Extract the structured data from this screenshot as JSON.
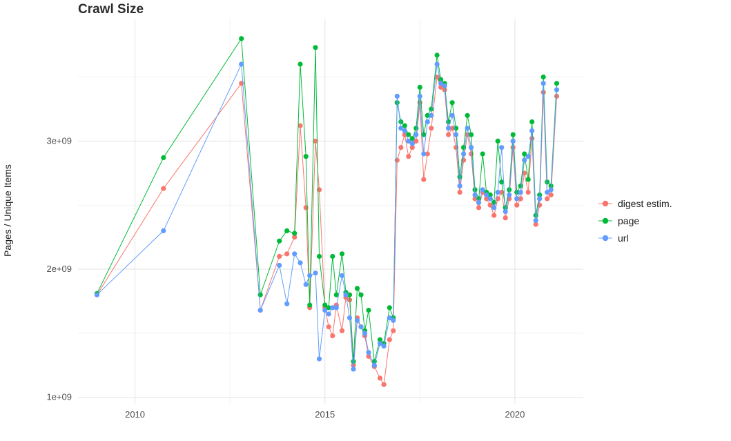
{
  "title": "Crawl Size",
  "chart_data": {
    "type": "line",
    "title": "Crawl Size",
    "xlabel": "",
    "ylabel": "Pages / Unique Items",
    "values_scale": "1e9",
    "xlim": [
      2008.5,
      2021.8
    ],
    "ylim": [
      0.95,
      3.95
    ],
    "x_ticks": [
      2010,
      2015,
      2020
    ],
    "x_tick_labels": [
      "2010",
      "2015",
      "2020"
    ],
    "y_ticks": [
      1,
      2,
      3
    ],
    "y_tick_labels": [
      "1e+09",
      "2e+09",
      "3e+09"
    ],
    "grid": true,
    "minor_gridlines": true,
    "legend_position": "right",
    "x": [
      2009.0,
      2010.75,
      2012.8,
      2013.3,
      2013.8,
      2014.0,
      2014.2,
      2014.35,
      2014.5,
      2014.6,
      2014.75,
      2014.85,
      2015.0,
      2015.1,
      2015.2,
      2015.3,
      2015.45,
      2015.55,
      2015.65,
      2015.75,
      2015.85,
      2015.95,
      2016.05,
      2016.15,
      2016.3,
      2016.45,
      2016.55,
      2016.7,
      2016.8,
      2016.9,
      2017.0,
      2017.1,
      2017.2,
      2017.3,
      2017.4,
      2017.5,
      2017.6,
      2017.7,
      2017.8,
      2017.95,
      2018.05,
      2018.15,
      2018.25,
      2018.35,
      2018.45,
      2018.55,
      2018.65,
      2018.75,
      2018.85,
      2018.95,
      2019.05,
      2019.15,
      2019.25,
      2019.35,
      2019.45,
      2019.55,
      2019.65,
      2019.75,
      2019.85,
      2019.95,
      2020.05,
      2020.15,
      2020.25,
      2020.35,
      2020.45,
      2020.55,
      2020.65,
      2020.75,
      2020.85,
      2020.95,
      2021.1
    ],
    "series": [
      {
        "name": "digest estim.",
        "color": "#F8766D",
        "values": [
          1.8,
          2.63,
          3.45,
          1.68,
          2.1,
          2.12,
          2.25,
          3.12,
          2.48,
          1.7,
          3.0,
          2.62,
          1.7,
          1.55,
          1.48,
          1.72,
          1.52,
          1.78,
          1.76,
          1.25,
          1.62,
          1.55,
          1.48,
          1.32,
          1.24,
          1.15,
          1.1,
          1.45,
          1.52,
          2.85,
          2.95,
          3.05,
          2.88,
          2.95,
          3.0,
          3.3,
          2.7,
          2.9,
          3.1,
          3.5,
          3.42,
          3.4,
          3.05,
          3.1,
          2.95,
          2.6,
          2.85,
          3.05,
          2.9,
          2.55,
          2.48,
          2.6,
          2.55,
          2.5,
          2.42,
          2.55,
          2.6,
          2.4,
          2.55,
          2.95,
          2.5,
          2.55,
          2.75,
          2.6,
          3.02,
          2.35,
          2.5,
          3.38,
          2.55,
          2.58,
          3.35
        ]
      },
      {
        "name": "page",
        "color": "#00BA38",
        "values": [
          1.81,
          2.87,
          3.8,
          1.8,
          2.22,
          2.3,
          2.28,
          3.6,
          2.88,
          1.72,
          3.73,
          2.1,
          1.72,
          1.7,
          2.1,
          1.8,
          2.12,
          1.82,
          1.8,
          1.28,
          1.85,
          1.8,
          1.52,
          1.68,
          1.28,
          1.45,
          1.42,
          1.7,
          1.62,
          3.3,
          3.15,
          3.12,
          3.05,
          3.02,
          3.1,
          3.42,
          3.05,
          3.2,
          3.25,
          3.67,
          3.48,
          3.45,
          3.15,
          3.3,
          3.1,
          2.72,
          2.95,
          3.2,
          3.05,
          2.62,
          2.55,
          2.9,
          2.6,
          2.58,
          2.52,
          3.0,
          2.68,
          2.48,
          2.62,
          3.05,
          2.6,
          2.65,
          2.9,
          2.7,
          3.15,
          2.42,
          2.58,
          3.5,
          2.68,
          2.65,
          3.45
        ]
      },
      {
        "name": "url",
        "color": "#619CFF",
        "values": [
          1.8,
          2.3,
          3.6,
          1.68,
          2.03,
          1.73,
          2.12,
          2.05,
          1.88,
          1.95,
          1.97,
          1.3,
          1.68,
          1.65,
          1.7,
          1.7,
          1.95,
          1.8,
          1.62,
          1.22,
          1.6,
          1.55,
          1.5,
          1.35,
          1.25,
          1.42,
          1.4,
          1.62,
          1.6,
          3.35,
          3.1,
          3.08,
          3.0,
          2.98,
          3.05,
          3.35,
          2.9,
          3.15,
          3.2,
          3.6,
          3.45,
          3.43,
          3.1,
          3.2,
          3.05,
          2.65,
          2.9,
          3.1,
          2.95,
          2.58,
          2.52,
          2.62,
          2.58,
          2.55,
          2.48,
          2.6,
          2.95,
          2.45,
          2.58,
          3.0,
          2.55,
          2.6,
          2.85,
          2.88,
          3.08,
          2.38,
          2.55,
          3.45,
          2.6,
          2.62,
          3.4
        ]
      }
    ]
  },
  "legend": {
    "items": [
      {
        "label": "digest estim.",
        "color": "#F8766D"
      },
      {
        "label": "page",
        "color": "#00BA38"
      },
      {
        "label": "url",
        "color": "#619CFF"
      }
    ]
  },
  "colors": {
    "grid_major": "#e3e3e3",
    "grid_minor": "#f1f1f1",
    "background": "#ffffff"
  }
}
